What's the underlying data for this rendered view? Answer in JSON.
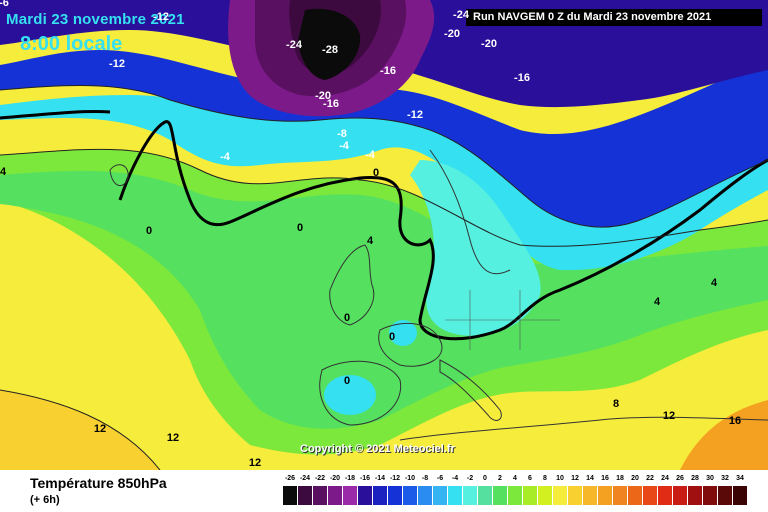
{
  "header": {
    "date": "Mardi 23 novembre 2021",
    "time": "8:00 locale",
    "run": "Run NAVGEM 0 Z du Mardi 23 novembre 2021"
  },
  "copyright": "Copyright © 2021 Meteociel.fr",
  "variable": {
    "title": "Température 850hPa",
    "subtitle": "(+ 6h)"
  },
  "map": {
    "isotherm_labels": [
      "-24",
      "-28",
      "-24",
      "-20",
      "-20",
      "-12",
      "-16",
      "-12",
      "-16",
      "-20",
      "-16",
      "-12",
      "-8",
      "-4",
      "-4",
      "-4",
      "0",
      "0",
      "0",
      "0",
      "0",
      "0",
      "4",
      "4",
      "4",
      "4",
      "8",
      "12",
      "12",
      "12",
      "12",
      "16",
      "-6"
    ],
    "colors": {
      "very_cold": "#3d0a3f",
      "cold_purple": "#7d1a8a",
      "blue": "#1432d6",
      "cyan": "#35e0f0",
      "green": "#55e060",
      "yellow": "#f6ec3c",
      "orange": "#f4a020"
    }
  },
  "legend": {
    "ticks": [
      "-26",
      "-24",
      "-22",
      "-20",
      "-18",
      "-16",
      "-14",
      "-12",
      "-10",
      "-8",
      "-6",
      "-4",
      "-2",
      "0",
      "2",
      "4",
      "6",
      "8",
      "10",
      "12",
      "14",
      "16",
      "18",
      "20",
      "22",
      "24",
      "26",
      "28",
      "30",
      "32",
      "34"
    ],
    "colors": [
      "#0b0b0b",
      "#3d0a3f",
      "#5a1060",
      "#7d1a8a",
      "#9a2aa8",
      "#2a0f9a",
      "#1c22c0",
      "#1432d6",
      "#1c5ae8",
      "#2a8cf0",
      "#35b4f4",
      "#35e0f0",
      "#55f0e0",
      "#55e0a0",
      "#55e060",
      "#7ce83c",
      "#a8ec28",
      "#d2f020",
      "#f6ec3c",
      "#f8d030",
      "#f6b82a",
      "#f4a020",
      "#f08420",
      "#ec6818",
      "#e84818",
      "#e02c14",
      "#c81c14",
      "#a01010",
      "#800c0c",
      "#5a0808",
      "#3a0404"
    ]
  }
}
